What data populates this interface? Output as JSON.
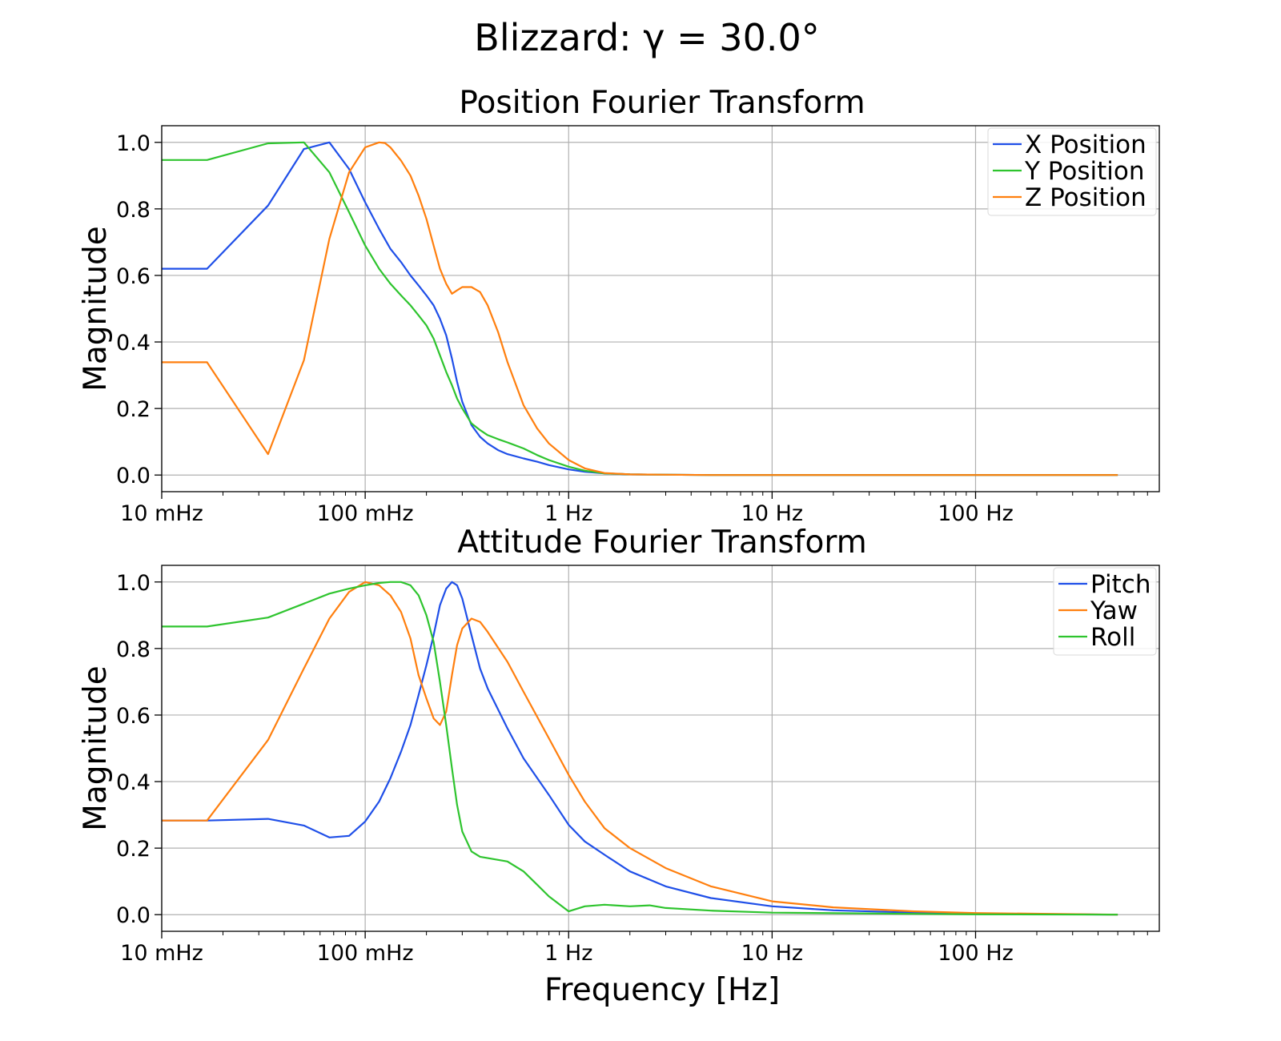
{
  "figure_title": "Blizzard: γ = 30.0°",
  "colors": {
    "blue": "#1f4fe8",
    "green": "#2ec42e",
    "orange": "#ff7f0e",
    "grid": "#b0b0b0",
    "axis": "#000000"
  },
  "chart_data": [
    {
      "type": "line",
      "title": "Position Fourier Transform",
      "xlabel": "",
      "ylabel": "Magnitude",
      "xscale": "log",
      "xlim": [
        0.01,
        800
      ],
      "ylim": [
        -0.05,
        1.05
      ],
      "xticks": [
        0.01,
        0.1,
        1,
        10,
        100
      ],
      "xtick_labels": [
        "10 mHz",
        "100 mHz",
        "1 Hz",
        "10 Hz",
        "100 Hz"
      ],
      "yticks": [
        0.0,
        0.2,
        0.4,
        0.6,
        0.8,
        1.0
      ],
      "ytick_labels": [
        "0.0",
        "0.2",
        "0.4",
        "0.6",
        "0.8",
        "1.0"
      ],
      "grid": true,
      "legend": "top-right",
      "series": [
        {
          "name": "X Position",
          "color": "#1f4fe8",
          "x": [
            0.01,
            0.0167,
            0.0333,
            0.05,
            0.0667,
            0.0833,
            0.1,
            0.117,
            0.133,
            0.15,
            0.167,
            0.183,
            0.2,
            0.217,
            0.233,
            0.25,
            0.267,
            0.283,
            0.3,
            0.333,
            0.367,
            0.4,
            0.45,
            0.5,
            0.6,
            0.7,
            0.8,
            1,
            1.2,
            1.5,
            2,
            3,
            5,
            10,
            100,
            500
          ],
          "y": [
            0.62,
            0.62,
            0.81,
            0.98,
            1.0,
            0.92,
            0.82,
            0.74,
            0.68,
            0.64,
            0.6,
            0.57,
            0.54,
            0.51,
            0.47,
            0.42,
            0.35,
            0.28,
            0.22,
            0.15,
            0.115,
            0.095,
            0.075,
            0.063,
            0.05,
            0.04,
            0.03,
            0.017,
            0.01,
            0.005,
            0.002,
            0.001,
            0.0,
            0.0,
            0.0,
            0.0
          ]
        },
        {
          "name": "Y Position",
          "color": "#2ec42e",
          "x": [
            0.01,
            0.0167,
            0.0333,
            0.05,
            0.0667,
            0.0833,
            0.1,
            0.117,
            0.133,
            0.15,
            0.167,
            0.183,
            0.2,
            0.217,
            0.233,
            0.25,
            0.267,
            0.283,
            0.3,
            0.333,
            0.367,
            0.4,
            0.45,
            0.5,
            0.6,
            0.7,
            0.8,
            1,
            1.2,
            1.5,
            2,
            3,
            5,
            10,
            100,
            500
          ],
          "y": [
            0.947,
            0.947,
            0.997,
            1.0,
            0.91,
            0.79,
            0.69,
            0.62,
            0.575,
            0.54,
            0.51,
            0.48,
            0.45,
            0.41,
            0.36,
            0.31,
            0.27,
            0.23,
            0.2,
            0.155,
            0.135,
            0.12,
            0.108,
            0.098,
            0.08,
            0.06,
            0.045,
            0.025,
            0.013,
            0.005,
            0.002,
            0.001,
            0.0,
            0.0,
            0.0,
            0.0
          ]
        },
        {
          "name": "Z Position",
          "color": "#ff7f0e",
          "x": [
            0.01,
            0.0167,
            0.0333,
            0.05,
            0.0667,
            0.0833,
            0.1,
            0.117,
            0.125,
            0.133,
            0.15,
            0.167,
            0.183,
            0.2,
            0.217,
            0.233,
            0.25,
            0.267,
            0.283,
            0.3,
            0.333,
            0.367,
            0.4,
            0.45,
            0.5,
            0.6,
            0.7,
            0.8,
            1,
            1.2,
            1.5,
            2,
            3,
            5,
            10,
            100,
            500
          ],
          "y": [
            0.339,
            0.339,
            0.063,
            0.345,
            0.71,
            0.91,
            0.985,
            1.0,
            0.998,
            0.985,
            0.945,
            0.9,
            0.84,
            0.77,
            0.69,
            0.62,
            0.575,
            0.545,
            0.555,
            0.565,
            0.565,
            0.55,
            0.51,
            0.43,
            0.34,
            0.21,
            0.14,
            0.095,
            0.045,
            0.02,
            0.006,
            0.002,
            0.001,
            0.0,
            0.0,
            0.0,
            0.0
          ]
        }
      ]
    },
    {
      "type": "line",
      "title": "Attitude Fourier Transform",
      "xlabel": "Frequency [Hz]",
      "ylabel": "Magnitude",
      "xscale": "log",
      "xlim": [
        0.01,
        800
      ],
      "ylim": [
        -0.05,
        1.05
      ],
      "xticks": [
        0.01,
        0.1,
        1,
        10,
        100
      ],
      "xtick_labels": [
        "10 mHz",
        "100 mHz",
        "1 Hz",
        "10 Hz",
        "100 Hz"
      ],
      "yticks": [
        0.0,
        0.2,
        0.4,
        0.6,
        0.8,
        1.0
      ],
      "ytick_labels": [
        "0.0",
        "0.2",
        "0.4",
        "0.6",
        "0.8",
        "1.0"
      ],
      "grid": true,
      "legend": "top-right",
      "series": [
        {
          "name": "Pitch",
          "color": "#1f4fe8",
          "x": [
            0.01,
            0.0167,
            0.0333,
            0.05,
            0.0667,
            0.0833,
            0.1,
            0.117,
            0.133,
            0.15,
            0.167,
            0.183,
            0.2,
            0.217,
            0.233,
            0.25,
            0.267,
            0.283,
            0.3,
            0.333,
            0.367,
            0.4,
            0.5,
            0.6,
            0.8,
            1,
            1.2,
            1.5,
            2,
            3,
            5,
            10,
            20,
            50,
            100,
            500
          ],
          "y": [
            0.283,
            0.283,
            0.288,
            0.268,
            0.232,
            0.237,
            0.28,
            0.34,
            0.41,
            0.49,
            0.57,
            0.66,
            0.75,
            0.84,
            0.93,
            0.98,
            1.0,
            0.99,
            0.95,
            0.84,
            0.74,
            0.68,
            0.56,
            0.47,
            0.36,
            0.27,
            0.22,
            0.18,
            0.13,
            0.085,
            0.05,
            0.025,
            0.013,
            0.006,
            0.003,
            0.0
          ]
        },
        {
          "name": "Yaw",
          "color": "#ff7f0e",
          "x": [
            0.01,
            0.0167,
            0.0333,
            0.05,
            0.0667,
            0.0833,
            0.1,
            0.117,
            0.133,
            0.15,
            0.167,
            0.183,
            0.2,
            0.217,
            0.233,
            0.25,
            0.267,
            0.283,
            0.3,
            0.333,
            0.367,
            0.4,
            0.5,
            0.6,
            0.8,
            1,
            1.2,
            1.5,
            2,
            3,
            5,
            10,
            20,
            50,
            100,
            500
          ],
          "y": [
            0.283,
            0.283,
            0.525,
            0.74,
            0.89,
            0.97,
            1.0,
            0.99,
            0.96,
            0.91,
            0.83,
            0.72,
            0.65,
            0.59,
            0.57,
            0.61,
            0.72,
            0.81,
            0.86,
            0.89,
            0.88,
            0.85,
            0.76,
            0.67,
            0.53,
            0.42,
            0.34,
            0.26,
            0.2,
            0.14,
            0.085,
            0.04,
            0.022,
            0.01,
            0.005,
            0.0
          ]
        },
        {
          "name": "Roll",
          "color": "#2ec42e",
          "x": [
            0.01,
            0.0167,
            0.0333,
            0.05,
            0.0667,
            0.0833,
            0.1,
            0.117,
            0.133,
            0.15,
            0.167,
            0.183,
            0.2,
            0.217,
            0.233,
            0.25,
            0.267,
            0.283,
            0.3,
            0.333,
            0.367,
            0.4,
            0.5,
            0.6,
            0.7,
            0.8,
            1,
            1.2,
            1.5,
            2,
            2.5,
            3,
            5,
            10,
            100,
            500
          ],
          "y": [
            0.866,
            0.866,
            0.893,
            0.935,
            0.965,
            0.98,
            0.99,
            0.997,
            1.0,
            1.0,
            0.99,
            0.96,
            0.9,
            0.82,
            0.7,
            0.57,
            0.44,
            0.33,
            0.25,
            0.19,
            0.174,
            0.17,
            0.16,
            0.13,
            0.09,
            0.055,
            0.01,
            0.025,
            0.03,
            0.025,
            0.028,
            0.02,
            0.012,
            0.006,
            0.001,
            0.0
          ]
        }
      ]
    }
  ]
}
